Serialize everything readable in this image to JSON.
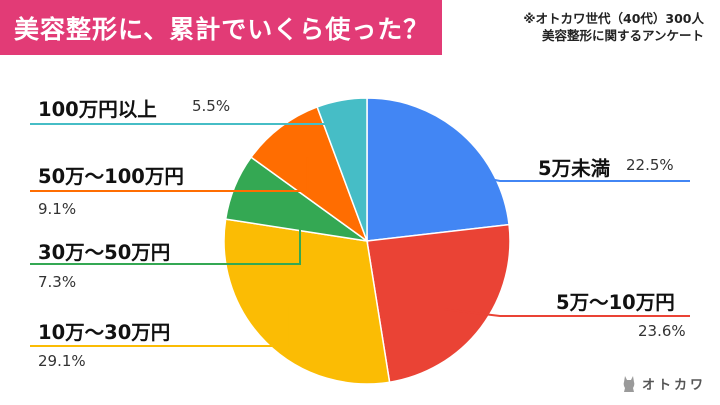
{
  "title": "美容整形に、累計でいくら使った？",
  "note": {
    "line1": "※オトカワ世代（40代）300人",
    "line2": "美容整形に関するアンケート"
  },
  "brand": "オトカワ",
  "chart_data": {
    "type": "pie",
    "start": "12 o'clock",
    "direction": "clockwise",
    "slices": [
      {
        "label": "5万未満",
        "value": 22.5,
        "value_text": "22.5%",
        "color": "#4286f4"
      },
      {
        "label": "5万〜10万円",
        "value": 23.6,
        "value_text": "23.6%",
        "color": "#ea4335"
      },
      {
        "label": "10万〜30万円",
        "value": 29.1,
        "value_text": "29.1%",
        "color": "#fbbc04"
      },
      {
        "label": "30万〜50万円",
        "value": 7.3,
        "value_text": "7.3%",
        "color": "#34a853"
      },
      {
        "label": "50万〜100万円",
        "value": 9.1,
        "value_text": "9.1%",
        "color": "#ff6d01"
      },
      {
        "label": "100万円以上",
        "value": 5.5,
        "value_text": "5.5%",
        "color": "#46bdc6"
      }
    ]
  }
}
